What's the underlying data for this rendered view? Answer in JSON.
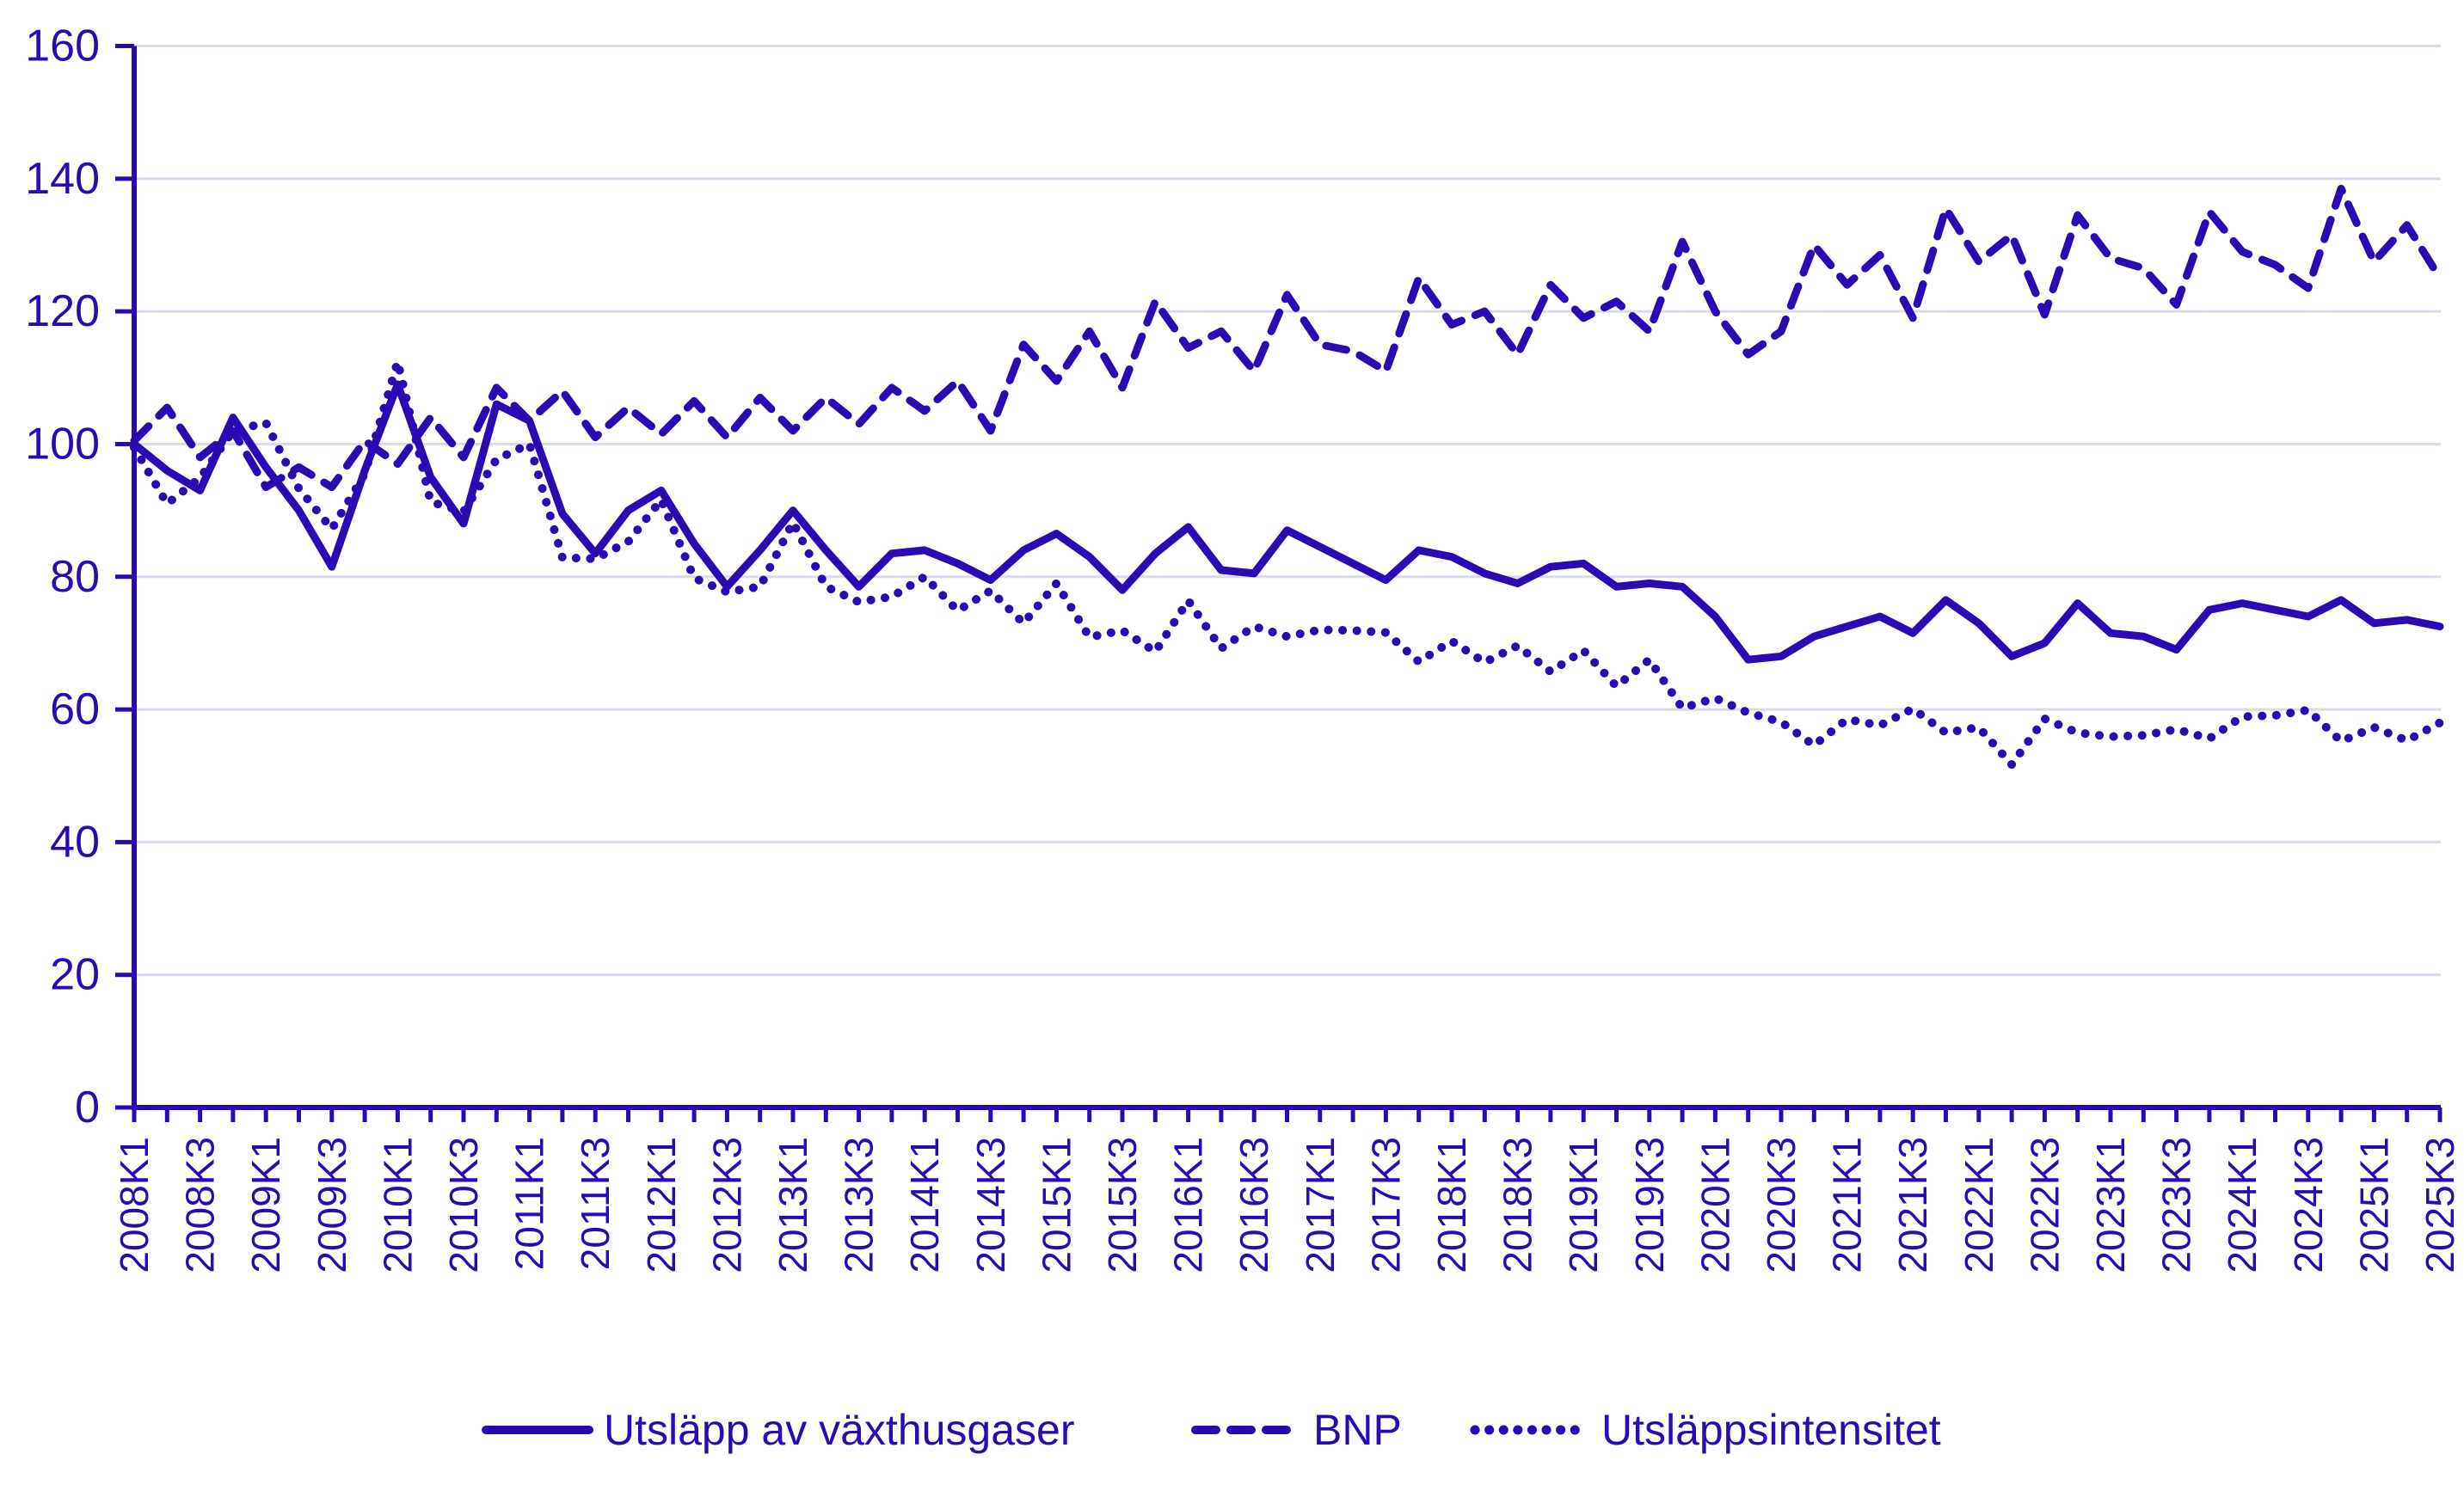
{
  "chart_data": {
    "type": "line",
    "title": "",
    "xlabel": "",
    "ylabel": "",
    "ylim": [
      0,
      160
    ],
    "ytick_step": 20,
    "yticks": [
      0,
      20,
      40,
      60,
      80,
      100,
      120,
      140,
      160
    ],
    "grid": true,
    "legend_position": "bottom",
    "x_tick_label_every": 2,
    "categories": [
      "2008K1",
      "2008K2",
      "2008K3",
      "2008K4",
      "2009K1",
      "2009K2",
      "2009K3",
      "2009K4",
      "2010K1",
      "2010K2",
      "2010K3",
      "2010K4",
      "2011K1",
      "2011K2",
      "2011K3",
      "2011K4",
      "2012K1",
      "2012K2",
      "2012K3",
      "2012K4",
      "2013K1",
      "2013K2",
      "2013K3",
      "2013K4",
      "2014K1",
      "2014K2",
      "2014K3",
      "2014K4",
      "2015K1",
      "2015K2",
      "2015K3",
      "2015K4",
      "2016K1",
      "2016K2",
      "2016K3",
      "2016K4",
      "2017K1",
      "2017K2",
      "2017K3",
      "2017K4",
      "2018K1",
      "2018K2",
      "2018K3",
      "2018K4",
      "2019K1",
      "2019K2",
      "2019K3",
      "2019K4",
      "2020K1",
      "2020K2",
      "2020K3",
      "2020K4",
      "2021K1",
      "2021K2",
      "2021K3",
      "2021K4",
      "2022K1",
      "2022K2",
      "2022K3",
      "2022K4",
      "2023K1",
      "2023K2",
      "2023K3",
      "2023K4",
      "2024K1",
      "2024K2",
      "2024K3",
      "2024K4",
      "2025K1",
      "2025K2",
      "2025K3"
    ],
    "series": [
      {
        "name": "Utsläpp av växthusgaser",
        "line_style": "solid",
        "values": [
          100,
          96,
          93,
          104,
          96.5,
          90,
          81.5,
          96,
          109,
          95,
          88,
          106,
          103.5,
          89.5,
          83.5,
          90,
          93,
          85,
          78.5,
          84,
          90,
          84,
          78.5,
          83.5,
          84,
          82,
          79.5,
          84,
          86.5,
          83,
          78,
          83.5,
          87.5,
          81,
          80.5,
          87,
          84.5,
          82,
          79.5,
          84,
          83,
          80.5,
          79,
          81.5,
          82,
          78.5,
          79,
          78.5,
          74,
          67.5,
          68,
          71,
          72.5,
          74,
          71.5,
          76.5,
          73,
          68,
          70,
          76,
          71.5,
          71,
          69,
          75,
          76,
          75,
          74,
          76.5,
          73,
          73.5,
          72.5
        ]
      },
      {
        "name": "BNP",
        "line_style": "dashed",
        "values": [
          100.5,
          105.5,
          98,
          102,
          93.5,
          96.5,
          93.5,
          100.5,
          97,
          104,
          98,
          108.5,
          103.5,
          108,
          101,
          105.5,
          101.5,
          106.5,
          101,
          107,
          102,
          107,
          103,
          108.5,
          105,
          109.5,
          102,
          115,
          109.5,
          117,
          108.5,
          121.5,
          114.5,
          117,
          111,
          122.5,
          115,
          114,
          111,
          125,
          118,
          120,
          113.5,
          124,
          119,
          121.5,
          117,
          130.5,
          120,
          113.5,
          117,
          130,
          124,
          128.5,
          119,
          135.5,
          127.5,
          131.5,
          119.5,
          134.5,
          128,
          126.5,
          121,
          135,
          129,
          127,
          123.5,
          138.5,
          127.5,
          133,
          125
        ]
      },
      {
        "name": "Utsläppsintensitet",
        "line_style": "dotted",
        "values": [
          99.5,
          91.0,
          94.9,
          102.0,
          103.2,
          93.3,
          87.2,
          95.5,
          112.4,
          91.3,
          89.8,
          97.7,
          100.0,
          82.9,
          82.7,
          85.3,
          91.6,
          79.8,
          77.7,
          78.5,
          88.2,
          78.5,
          76.2,
          77.0,
          80.0,
          74.9,
          77.9,
          73.0,
          79.0,
          70.9,
          71.9,
          68.7,
          76.4,
          69.2,
          72.5,
          71.0,
          72.0,
          71.9,
          71.6,
          67.2,
          70.3,
          67.1,
          69.6,
          65.7,
          68.9,
          63.5,
          67.5,
          60.2,
          61.7,
          59.5,
          58.1,
          54.6,
          58.5,
          57.6,
          60.1,
          56.5,
          57.3,
          51.7,
          58.6,
          56.5,
          55.9,
          56.1,
          57.0,
          55.6,
          58.9,
          59.1,
          59.9,
          55.2,
          57.3,
          55.3,
          58.0
        ]
      }
    ],
    "colors": {
      "line": "#2B0AB4",
      "grid": "#D9D9EF",
      "background": "#FFFFFF"
    }
  }
}
